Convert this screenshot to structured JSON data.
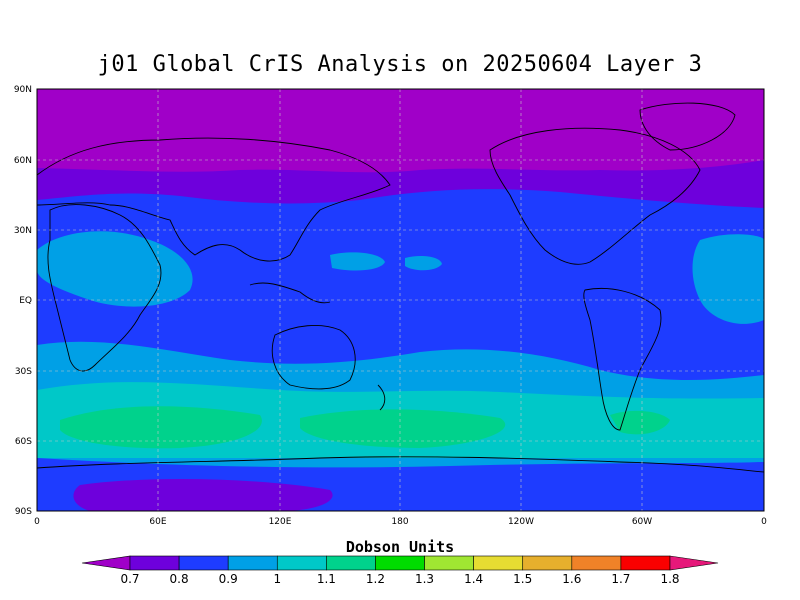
{
  "title": "j01 Global CrIS Analysis on 20250604 Layer 3",
  "lat_labels": [
    "90N",
    "60N",
    "30N",
    "EQ",
    "30S",
    "60S",
    "90S"
  ],
  "lon_labels": [
    "0",
    "60E",
    "120E",
    "180",
    "120W",
    "60W",
    "0"
  ],
  "colorbar": {
    "title": "Dobson Units",
    "levels": [
      "0.7",
      "0.8",
      "0.9",
      "1",
      "1.1",
      "1.2",
      "1.3",
      "1.4",
      "1.5",
      "1.6",
      "1.7",
      "1.8"
    ],
    "colors": [
      "#a000c8",
      "#6e00dc",
      "#1e3cff",
      "#00a0e6",
      "#00c8c8",
      "#00d28c",
      "#00dc00",
      "#a0e632",
      "#e6dc32",
      "#e6af2d",
      "#f08228",
      "#fa0000",
      "#e6187a"
    ]
  },
  "map_colors": {
    "band_0_7": "#a000c8",
    "band_0_8": "#6e00dc",
    "band_0_9": "#1e3cff",
    "band_1_0": "#00a0e6",
    "band_1_1": "#00c8c8",
    "band_1_2": "#00d28c",
    "coast": "#000000",
    "grid": "#c8c8c8"
  }
}
